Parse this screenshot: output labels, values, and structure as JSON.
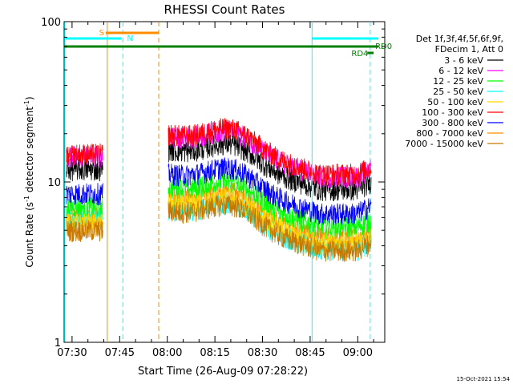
{
  "chart_data": {
    "type": "line",
    "title": "RHESSI Count Rates",
    "xlabel": "Start Time (26-Aug-09 07:28:22)",
    "ylabel": "Count Rate (s⁻¹ detector segment⁻¹)",
    "ylabel_main": "Count Rate (s",
    "ylabel_mid": " detector segment",
    "ylabel_end": ")",
    "ylabel_sup": "-1",
    "yscale": "log",
    "ylim": [
      1,
      100
    ],
    "xlim_minutes": [
      447.5,
      548.5
    ],
    "x_ticks": [
      {
        "label": "07:30",
        "min": 450
      },
      {
        "label": "07:45",
        "min": 465
      },
      {
        "label": "08:00",
        "min": 480
      },
      {
        "label": "08:15",
        "min": 495
      },
      {
        "label": "08:30",
        "min": 510
      },
      {
        "label": "08:45",
        "min": 525
      },
      {
        "label": "09:00",
        "min": 540
      }
    ],
    "y_ticks": [
      {
        "label": "1",
        "value": 1
      },
      {
        "label": "10",
        "value": 10
      },
      {
        "label": "100",
        "value": 100
      }
    ],
    "legend_header": [
      "Det 1f,3f,4f,5f,6f,9f,",
      "FDecim 1, Att 0"
    ],
    "series": [
      {
        "name": "3 - 6 keV",
        "color": "#000000",
        "level": 12
      },
      {
        "name": "6 - 12 keV",
        "color": "#ff00ff",
        "level": 14.5
      },
      {
        "name": "12 - 25 keV",
        "color": "#00ff00",
        "level": 7
      },
      {
        "name": "25 - 50 keV",
        "color": "#00ffff",
        "level": 6
      },
      {
        "name": "50 - 100 keV",
        "color": "#ffd700",
        "level": 5.5
      },
      {
        "name": "100 - 300 keV",
        "color": "#ff0000",
        "level": 15
      },
      {
        "name": "300 - 800 keV",
        "color": "#0000ff",
        "level": 8.5
      },
      {
        "name": "800 - 7000 keV",
        "color": "#ff8c00",
        "level": 6
      },
      {
        "name": "7000 - 15000 keV",
        "color": "#c87800",
        "level": 5
      }
    ],
    "flag_labels": [
      {
        "text": "S",
        "color": "#ff8c00"
      },
      {
        "text": "N",
        "color": "#00ffff"
      },
      {
        "text": "RD0",
        "color": "#008000"
      },
      {
        "text": "RD4",
        "color": "#008000"
      }
    ],
    "footer_date": "15-Oct-2021 15:54"
  }
}
